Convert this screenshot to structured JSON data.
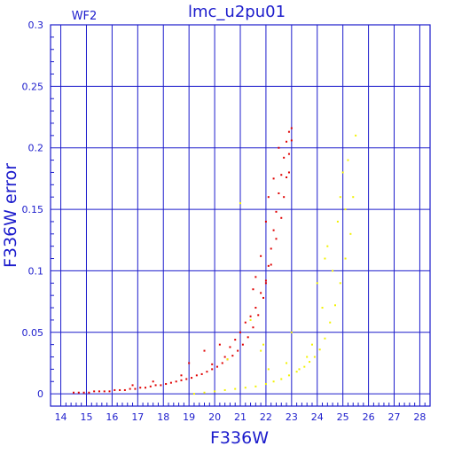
{
  "chart_data": {
    "type": "scatter",
    "title": "lmc_u2pu01",
    "panel_label": "WF2",
    "xlabel": "F336W",
    "ylabel": "F336W error",
    "xlim": [
      13.6,
      28.4
    ],
    "ylim": [
      -0.01,
      0.3
    ],
    "x_ticks": [
      14,
      15,
      16,
      17,
      18,
      19,
      20,
      21,
      22,
      23,
      24,
      25,
      26,
      27,
      28
    ],
    "x_tick_labels": [
      "14",
      "15",
      "16",
      "17",
      "18",
      "19",
      "20",
      "21",
      "22",
      "23",
      "24",
      "25",
      "26",
      "27",
      "28"
    ],
    "y_ticks": [
      0,
      0.05,
      0.1,
      0.15,
      0.2,
      0.25,
      0.3
    ],
    "y_tick_labels": [
      "0",
      "0.05",
      "0.1",
      "0.15",
      "0.2",
      "0.25",
      "0.3"
    ],
    "grid": true,
    "colors": {
      "axis": "#1c1ccc",
      "grid": "#1c1ccc",
      "series_red": "#e00000",
      "series_yellow": "#f2f200"
    },
    "series": [
      {
        "color": "#e00000",
        "points": [
          [
            14.5,
            0.001
          ],
          [
            14.7,
            0.001
          ],
          [
            14.9,
            0.001
          ],
          [
            15.1,
            0.001
          ],
          [
            15.3,
            0.002
          ],
          [
            15.5,
            0.002
          ],
          [
            15.7,
            0.002
          ],
          [
            15.9,
            0.002
          ],
          [
            16.1,
            0.003
          ],
          [
            16.3,
            0.003
          ],
          [
            16.5,
            0.003
          ],
          [
            16.7,
            0.004
          ],
          [
            16.9,
            0.004
          ],
          [
            17.1,
            0.005
          ],
          [
            17.3,
            0.005
          ],
          [
            17.5,
            0.006
          ],
          [
            17.7,
            0.007
          ],
          [
            17.9,
            0.007
          ],
          [
            18.1,
            0.008
          ],
          [
            18.3,
            0.009
          ],
          [
            18.5,
            0.01
          ],
          [
            18.7,
            0.011
          ],
          [
            18.9,
            0.012
          ],
          [
            19.1,
            0.013
          ],
          [
            19.3,
            0.015
          ],
          [
            19.5,
            0.016
          ],
          [
            19.7,
            0.018
          ],
          [
            19.9,
            0.02
          ],
          [
            20.1,
            0.022
          ],
          [
            20.3,
            0.025
          ],
          [
            20.5,
            0.028
          ],
          [
            20.7,
            0.031
          ],
          [
            20.9,
            0.035
          ],
          [
            21.1,
            0.04
          ],
          [
            21.3,
            0.046
          ],
          [
            21.5,
            0.054
          ],
          [
            21.7,
            0.064
          ],
          [
            21.9,
            0.078
          ],
          [
            22.0,
            0.09
          ],
          [
            22.1,
            0.104
          ],
          [
            22.2,
            0.118
          ],
          [
            22.3,
            0.133
          ],
          [
            22.4,
            0.148
          ],
          [
            22.5,
            0.163
          ],
          [
            22.6,
            0.178
          ],
          [
            22.7,
            0.192
          ],
          [
            22.8,
            0.205
          ],
          [
            22.9,
            0.213
          ],
          [
            23.0,
            0.216
          ],
          [
            23.0,
            0.206
          ],
          [
            22.9,
            0.195
          ],
          [
            22.8,
            0.176
          ],
          [
            22.7,
            0.16
          ],
          [
            22.6,
            0.143
          ],
          [
            22.4,
            0.126
          ],
          [
            22.2,
            0.105
          ],
          [
            22.0,
            0.092
          ],
          [
            21.8,
            0.082
          ],
          [
            21.6,
            0.07
          ],
          [
            21.4,
            0.063
          ],
          [
            21.2,
            0.058
          ],
          [
            21.0,
            0.05
          ],
          [
            20.8,
            0.044
          ],
          [
            20.6,
            0.038
          ],
          [
            19.0,
            0.025
          ],
          [
            19.6,
            0.035
          ],
          [
            20.2,
            0.04
          ],
          [
            21.5,
            0.085
          ],
          [
            21.8,
            0.112
          ],
          [
            22.0,
            0.14
          ],
          [
            22.1,
            0.16
          ],
          [
            22.3,
            0.175
          ],
          [
            20.4,
            0.03
          ],
          [
            19.9,
            0.024
          ],
          [
            18.7,
            0.015
          ],
          [
            17.6,
            0.01
          ],
          [
            16.8,
            0.007
          ],
          [
            21.6,
            0.095
          ],
          [
            22.5,
            0.2
          ],
          [
            22.9,
            0.18
          ]
        ]
      },
      {
        "color": "#f2f200",
        "points": [
          [
            19.2,
            0.0
          ],
          [
            19.6,
            0.001
          ],
          [
            20.0,
            0.002
          ],
          [
            20.4,
            0.003
          ],
          [
            20.8,
            0.004
          ],
          [
            21.2,
            0.005
          ],
          [
            21.6,
            0.006
          ],
          [
            22.0,
            0.008
          ],
          [
            22.3,
            0.01
          ],
          [
            22.6,
            0.012
          ],
          [
            22.9,
            0.015
          ],
          [
            23.2,
            0.018
          ],
          [
            23.5,
            0.022
          ],
          [
            23.7,
            0.026
          ],
          [
            23.9,
            0.03
          ],
          [
            24.1,
            0.036
          ],
          [
            24.3,
            0.045
          ],
          [
            24.5,
            0.058
          ],
          [
            24.7,
            0.072
          ],
          [
            24.9,
            0.09
          ],
          [
            25.1,
            0.11
          ],
          [
            25.3,
            0.13
          ],
          [
            25.4,
            0.16
          ],
          [
            25.5,
            0.21
          ],
          [
            24.0,
            0.09
          ],
          [
            24.3,
            0.11
          ],
          [
            24.6,
            0.1
          ],
          [
            24.8,
            0.14
          ],
          [
            24.9,
            0.16
          ],
          [
            25.0,
            0.18
          ],
          [
            25.2,
            0.19
          ],
          [
            23.6,
            0.03
          ],
          [
            23.8,
            0.04
          ],
          [
            22.1,
            0.02
          ],
          [
            21.4,
            0.06
          ],
          [
            21.0,
            0.155
          ],
          [
            20.5,
            0.028
          ],
          [
            21.8,
            0.035
          ],
          [
            23.0,
            0.05
          ],
          [
            24.2,
            0.07
          ],
          [
            22.8,
            0.025
          ],
          [
            23.3,
            0.02
          ],
          [
            24.4,
            0.12
          ],
          [
            25.1,
            0.15
          ],
          [
            21.9,
            0.04
          ]
        ]
      }
    ]
  }
}
